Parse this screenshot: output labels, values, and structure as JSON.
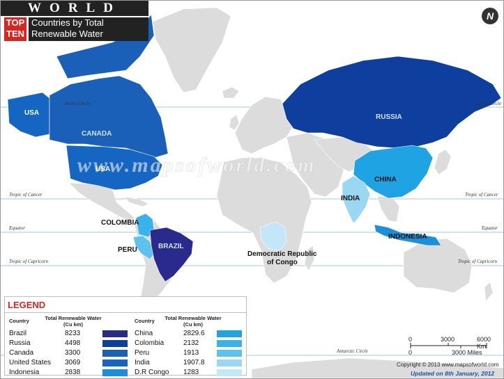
{
  "title": {
    "world": "WORLD",
    "top": "TOP",
    "ten": "TEN",
    "subtitle_line1": "Countries by Total",
    "subtitle_line2": "Renewable Water Resources"
  },
  "watermark": "www.mapsofworld.com",
  "north_symbol": "N",
  "latitude_lines": {
    "arctic_circle": "Arctic Circle",
    "tropic_of_cancer": "Tropic of Cancer",
    "equator": "Equator",
    "tropic_of_capricorn": "Tropic of Capricorn",
    "antarctic_circle": "Antarctic Circle"
  },
  "map_labels": {
    "usa_alaska": "USA",
    "canada": "CANADA",
    "usa": "USA",
    "russia": "RUSSIA",
    "china": "CHINA",
    "india": "INDIA",
    "indonesia": "INDONESIA",
    "brazil": "BRAZIL",
    "colombia": "COLOMBIA",
    "peru": "PERU",
    "drc_line1": "Democratic Republic",
    "drc_line2": "of Congo"
  },
  "colors": {
    "brazil": "#2a2a8c",
    "russia": "#0f3f9e",
    "canada": "#1a5fb8",
    "usa": "#1466c2",
    "indonesia": "#1a8fda",
    "china": "#1fa3e3",
    "colombia": "#39b4ea",
    "peru": "#5cc3ee",
    "india": "#9ad7f3",
    "drc": "#c3e7f8",
    "land": "#dcdcdc",
    "ocean": "#ffffff",
    "lat_line": "#7fb9e6",
    "legend_title": "#d7251f"
  },
  "legend": {
    "title": "LEGEND",
    "header_country": "Country",
    "header_value_line1": "Total Renewable Water",
    "header_value_line2": "(Cu km)",
    "rows_left": [
      {
        "country": "Brazil",
        "value": "8233",
        "color": "#2a2a8c"
      },
      {
        "country": "Russia",
        "value": "4498",
        "color": "#0f3f9e"
      },
      {
        "country": "Canada",
        "value": "3300",
        "color": "#1a5fb8"
      },
      {
        "country": "United States",
        "value": "3069",
        "color": "#1466c2"
      },
      {
        "country": "Indonesia",
        "value": "2838",
        "color": "#1a8fda"
      }
    ],
    "rows_right": [
      {
        "country": "China",
        "value": "2829.6",
        "color": "#1fa3e3"
      },
      {
        "country": "Colombia",
        "value": "2132",
        "color": "#39b4ea"
      },
      {
        "country": "Peru",
        "value": "1913",
        "color": "#5cc3ee"
      },
      {
        "country": "India",
        "value": "1907.8",
        "color": "#9ad7f3"
      },
      {
        "country": "D.R Congo",
        "value": "1283",
        "color": "#c3e7f8"
      }
    ]
  },
  "scale_bar": {
    "zero": "0",
    "mid_km": "3000",
    "end_km": "6000 Km",
    "zero_mi": "0",
    "end_mi": "3000 Miles"
  },
  "copyright": "Copyright © 2013 www.mapsofworld.com",
  "updated": "Updated on 8th January, 2012"
}
